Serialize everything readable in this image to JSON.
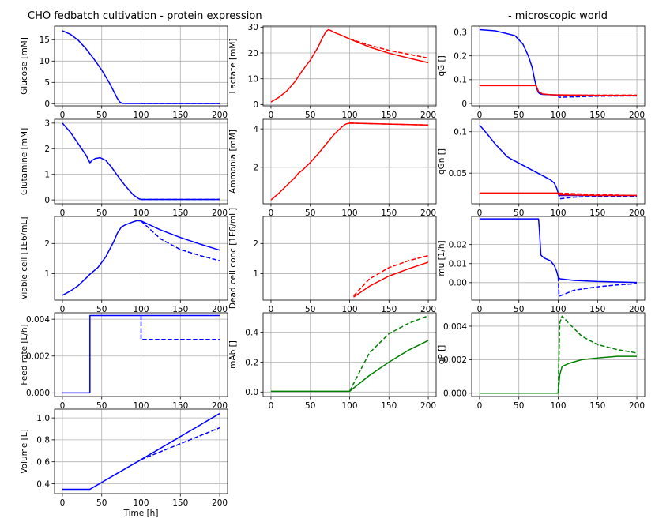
{
  "titles": {
    "left": "CHO fedbatch cultivation - protein expression",
    "right": "- microscopic world"
  },
  "colors": {
    "red": "#ff0000",
    "blue": "#0000ff",
    "green": "#008000",
    "grid": "#b0b0b0"
  },
  "chart_data": [
    {
      "id": "glucose",
      "type": "line",
      "xlabel": "",
      "ylabel": "Glucose [mM]",
      "xlim": [
        -10,
        210
      ],
      "ylim": [
        -0.5,
        18.2
      ],
      "xticks": [
        0,
        50,
        100,
        150,
        200
      ],
      "yticks": [
        0,
        5,
        10,
        15
      ],
      "series": [
        {
          "color": "blue",
          "dash": false,
          "x": [
            0,
            10,
            20,
            30,
            40,
            50,
            60,
            65,
            70,
            73,
            76,
            80,
            100,
            150,
            200
          ],
          "y": [
            17.1,
            16.3,
            14.9,
            12.9,
            10.5,
            7.9,
            4.8,
            3.0,
            1.2,
            0.4,
            0.1,
            0.05,
            0.05,
            0.05,
            0.05
          ]
        },
        {
          "color": "blue",
          "dash": true,
          "x": [
            100,
            150,
            200
          ],
          "y": [
            0.05,
            0.05,
            0.05
          ]
        }
      ]
    },
    {
      "id": "lactate",
      "type": "line",
      "xlabel": "",
      "ylabel": "Lactate [mM]",
      "xlim": [
        -10,
        210
      ],
      "ylim": [
        -0.5,
        30.4
      ],
      "xticks": [
        0,
        50,
        100,
        150,
        200
      ],
      "yticks": [
        0,
        10,
        20,
        30
      ],
      "series": [
        {
          "color": "red",
          "dash": false,
          "x": [
            0,
            10,
            20,
            30,
            40,
            50,
            60,
            65,
            70,
            73,
            76,
            80,
            90,
            100,
            125,
            150,
            175,
            200
          ],
          "y": [
            1,
            2.8,
            5.2,
            8.7,
            13.2,
            17.2,
            22.3,
            25.6,
            28.3,
            29.0,
            28.7,
            28.0,
            26.8,
            25.4,
            22.3,
            19.9,
            18.0,
            16.2
          ]
        },
        {
          "color": "red",
          "dash": true,
          "x": [
            100,
            125,
            150,
            175,
            200
          ],
          "y": [
            25.4,
            23.0,
            21.0,
            19.5,
            18.0
          ]
        }
      ]
    },
    {
      "id": "qG",
      "type": "line",
      "xlabel": "",
      "ylabel": "qG []",
      "xlim": [
        -10,
        210
      ],
      "ylim": [
        -0.01,
        0.325
      ],
      "xticks": [
        0,
        50,
        100,
        150,
        200
      ],
      "yticks": [
        0,
        0.1,
        0.2,
        0.3
      ],
      "series": [
        {
          "color": "blue",
          "dash": false,
          "x": [
            0,
            20,
            35,
            45,
            55,
            62,
            67,
            70,
            73,
            75,
            77,
            80,
            90,
            100,
            150,
            200
          ],
          "y": [
            0.31,
            0.305,
            0.293,
            0.285,
            0.25,
            0.2,
            0.15,
            0.1,
            0.06,
            0.045,
            0.04,
            0.038,
            0.037,
            0.035,
            0.034,
            0.034
          ]
        },
        {
          "color": "blue",
          "dash": true,
          "x": [
            100,
            101,
            150,
            200
          ],
          "y": [
            0.035,
            0.026,
            0.031,
            0.032
          ]
        },
        {
          "color": "red",
          "dash": false,
          "x": [
            0,
            72,
            75,
            80,
            90,
            100,
            150,
            200
          ],
          "y": [
            0.075,
            0.075,
            0.05,
            0.04,
            0.037,
            0.036,
            0.034,
            0.034
          ]
        },
        {
          "color": "red",
          "dash": true,
          "x": [
            100,
            150,
            200
          ],
          "y": [
            0.036,
            0.035,
            0.035
          ]
        }
      ]
    },
    {
      "id": "glutamine",
      "type": "line",
      "xlabel": "",
      "ylabel": "Glutamine [mM]",
      "xlim": [
        -10,
        210
      ],
      "ylim": [
        -0.15,
        3.15
      ],
      "xticks": [
        0,
        50,
        100,
        150,
        200
      ],
      "yticks": [
        0,
        1,
        2,
        3
      ],
      "series": [
        {
          "color": "blue",
          "dash": false,
          "x": [
            0,
            10,
            20,
            30,
            35,
            38,
            42,
            48,
            55,
            62,
            70,
            80,
            90,
            97,
            100,
            150,
            200
          ],
          "y": [
            3.0,
            2.65,
            2.2,
            1.75,
            1.45,
            1.55,
            1.62,
            1.65,
            1.55,
            1.3,
            0.95,
            0.55,
            0.2,
            0.05,
            0.02,
            0.02,
            0.02
          ]
        },
        {
          "color": "blue",
          "dash": true,
          "x": [
            100,
            150,
            200
          ],
          "y": [
            0.02,
            0.02,
            0.02
          ]
        }
      ]
    },
    {
      "id": "ammonia",
      "type": "line",
      "xlabel": "",
      "ylabel": "Ammonia [mM]",
      "xlim": [
        -10,
        210
      ],
      "ylim": [
        0.1,
        4.5
      ],
      "xticks": [
        0,
        50,
        100,
        150,
        200
      ],
      "yticks": [
        2,
        4
      ],
      "series": [
        {
          "color": "red",
          "dash": false,
          "x": [
            0,
            10,
            20,
            30,
            35,
            40,
            50,
            60,
            70,
            80,
            90,
            95,
            100,
            150,
            200
          ],
          "y": [
            0.3,
            0.65,
            1.05,
            1.45,
            1.7,
            1.85,
            2.25,
            2.7,
            3.2,
            3.7,
            4.1,
            4.25,
            4.3,
            4.25,
            4.2
          ]
        },
        {
          "color": "red",
          "dash": true,
          "x": [
            100,
            150,
            200
          ],
          "y": [
            4.3,
            4.25,
            4.2
          ]
        }
      ]
    },
    {
      "id": "qGn",
      "type": "line",
      "xlabel": "",
      "ylabel": "qGn []",
      "xlim": [
        -10,
        210
      ],
      "ylim": [
        0.013,
        0.115
      ],
      "xticks": [
        0,
        50,
        100,
        150,
        200
      ],
      "yticks": [
        0.05,
        0.1
      ],
      "series": [
        {
          "color": "blue",
          "dash": false,
          "x": [
            0,
            10,
            20,
            30,
            35,
            40,
            50,
            60,
            70,
            80,
            90,
            95,
            98,
            100,
            102,
            150,
            200
          ],
          "y": [
            0.108,
            0.097,
            0.085,
            0.075,
            0.07,
            0.067,
            0.062,
            0.057,
            0.052,
            0.047,
            0.042,
            0.038,
            0.032,
            0.026,
            0.023,
            0.023,
            0.023
          ]
        },
        {
          "color": "blue",
          "dash": true,
          "x": [
            100,
            102,
            120,
            150,
            200
          ],
          "y": [
            0.026,
            0.019,
            0.021,
            0.022,
            0.022
          ]
        },
        {
          "color": "red",
          "dash": false,
          "x": [
            0,
            100,
            101,
            150,
            200
          ],
          "y": [
            0.026,
            0.026,
            0.024,
            0.023,
            0.023
          ]
        },
        {
          "color": "red",
          "dash": true,
          "x": [
            100,
            150,
            200
          ],
          "y": [
            0.026,
            0.024,
            0.023
          ]
        }
      ]
    },
    {
      "id": "viable",
      "type": "line",
      "xlabel": "",
      "ylabel": "Viable cell [1E6/mL]",
      "xlim": [
        -10,
        210
      ],
      "ylim": [
        0.12,
        2.9
      ],
      "xticks": [
        0,
        50,
        100,
        150,
        200
      ],
      "yticks": [
        1,
        2
      ],
      "series": [
        {
          "color": "blue",
          "dash": false,
          "x": [
            0,
            10,
            20,
            30,
            35,
            45,
            55,
            65,
            70,
            75,
            80,
            90,
            95,
            100,
            125,
            150,
            175,
            200
          ],
          "y": [
            0.28,
            0.42,
            0.6,
            0.85,
            0.98,
            1.2,
            1.55,
            2.05,
            2.35,
            2.55,
            2.62,
            2.72,
            2.76,
            2.75,
            2.45,
            2.2,
            1.98,
            1.78
          ]
        },
        {
          "color": "blue",
          "dash": true,
          "x": [
            100,
            125,
            150,
            175,
            200
          ],
          "y": [
            2.75,
            2.15,
            1.8,
            1.6,
            1.43
          ]
        }
      ]
    },
    {
      "id": "dead",
      "type": "line",
      "xlabel": "",
      "ylabel": "Dead cell conc [1E6/mL]",
      "xlim": [
        -10,
        210
      ],
      "ylim": [
        0.12,
        2.9
      ],
      "xticks": [
        0,
        50,
        100,
        150,
        200
      ],
      "yticks": [
        1,
        2
      ],
      "series": [
        {
          "color": "red",
          "dash": false,
          "x": [
            105,
            125,
            150,
            175,
            200
          ],
          "y": [
            0.22,
            0.58,
            0.92,
            1.16,
            1.38
          ]
        },
        {
          "color": "red",
          "dash": true,
          "x": [
            105,
            125,
            150,
            175,
            200
          ],
          "y": [
            0.26,
            0.82,
            1.2,
            1.43,
            1.6
          ]
        }
      ]
    },
    {
      "id": "mu",
      "type": "line",
      "xlabel": "",
      "ylabel": "mu [1/h]",
      "xlim": [
        -10,
        210
      ],
      "ylim": [
        -0.0092,
        0.0348
      ],
      "xticks": [
        0,
        50,
        100,
        150,
        200
      ],
      "yticks": [
        0,
        0.01,
        0.02
      ],
      "labels_y": [
        "0.00",
        "0.01",
        "0.02"
      ],
      "series": [
        {
          "color": "blue",
          "dash": false,
          "x": [
            0,
            75,
            76,
            78,
            82,
            90,
            95,
            98,
            100,
            102,
            120,
            150,
            200
          ],
          "y": [
            0.0335,
            0.0335,
            0.028,
            0.0145,
            0.013,
            0.0115,
            0.009,
            0.006,
            0.003,
            0.002,
            0.0012,
            0.0006,
            0.0001
          ]
        },
        {
          "color": "blue",
          "dash": true,
          "x": [
            100,
            101,
            102,
            120,
            150,
            175,
            200
          ],
          "y": [
            0.003,
            -0.006,
            -0.007,
            -0.004,
            -0.0022,
            -0.0012,
            -0.0005
          ]
        }
      ]
    },
    {
      "id": "feed",
      "type": "line",
      "xlabel": "",
      "ylabel": "Feed rate [L/h]",
      "xlim": [
        -10,
        210
      ],
      "ylim": [
        -0.0002,
        0.00435
      ],
      "xticks": [
        0,
        50,
        100,
        150,
        200
      ],
      "yticks": [
        0,
        0.002,
        0.004
      ],
      "labels_y": [
        "0.000",
        "0.002",
        "0.004"
      ],
      "series": [
        {
          "color": "blue",
          "dash": false,
          "x": [
            0,
            35,
            35,
            100,
            200
          ],
          "y": [
            0,
            0,
            0.0042,
            0.0042,
            0.0042
          ]
        },
        {
          "color": "blue",
          "dash": true,
          "x": [
            100,
            100,
            200
          ],
          "y": [
            0.0042,
            0.0029,
            0.0029
          ]
        }
      ]
    },
    {
      "id": "mab",
      "type": "line",
      "xlabel": "",
      "ylabel": "mAb []",
      "xlim": [
        -10,
        210
      ],
      "ylim": [
        -0.03,
        0.53
      ],
      "xticks": [
        0,
        50,
        100,
        150,
        200
      ],
      "yticks": [
        0,
        0.2,
        0.4
      ],
      "labels_y": [
        "0.0",
        "0.2",
        "0.4"
      ],
      "series": [
        {
          "color": "green",
          "dash": false,
          "x": [
            0,
            100,
            125,
            150,
            175,
            200
          ],
          "y": [
            0.005,
            0.005,
            0.11,
            0.2,
            0.28,
            0.345
          ]
        },
        {
          "color": "green",
          "dash": true,
          "x": [
            100,
            125,
            150,
            175,
            200
          ],
          "y": [
            0.005,
            0.26,
            0.39,
            0.46,
            0.51
          ]
        }
      ]
    },
    {
      "id": "qP",
      "type": "line",
      "xlabel": "",
      "ylabel": "qP []",
      "xlim": [
        -10,
        210
      ],
      "ylim": [
        -0.0002,
        0.0048
      ],
      "xticks": [
        0,
        50,
        100,
        150,
        200
      ],
      "yticks": [
        0,
        0.002,
        0.004
      ],
      "labels_y": [
        "0.000",
        "0.002",
        "0.004"
      ],
      "series": [
        {
          "color": "green",
          "dash": false,
          "x": [
            0,
            100,
            102,
            105,
            115,
            130,
            150,
            175,
            200
          ],
          "y": [
            0,
            0,
            0.0011,
            0.0016,
            0.0018,
            0.002,
            0.0021,
            0.0022,
            0.0022
          ]
        },
        {
          "color": "green",
          "dash": true,
          "x": [
            100,
            102,
            105,
            115,
            130,
            150,
            175,
            200
          ],
          "y": [
            0,
            0.0042,
            0.0046,
            0.0041,
            0.0034,
            0.0029,
            0.0026,
            0.0024
          ]
        }
      ]
    },
    {
      "id": "volume",
      "type": "line",
      "xlabel": "Time [h]",
      "ylabel": "Volume [L]",
      "xlim": [
        -10,
        210
      ],
      "ylim": [
        0.31,
        1.08
      ],
      "xticks": [
        0,
        50,
        100,
        150,
        200
      ],
      "yticks": [
        0.4,
        0.6,
        0.8,
        1.0
      ],
      "labels_y": [
        "0.4",
        "0.6",
        "0.8",
        "1.0"
      ],
      "series": [
        {
          "color": "blue",
          "dash": false,
          "x": [
            0,
            35,
            100,
            200
          ],
          "y": [
            0.35,
            0.35,
            0.62,
            1.04
          ]
        },
        {
          "color": "blue",
          "dash": true,
          "x": [
            100,
            200
          ],
          "y": [
            0.62,
            0.91
          ]
        }
      ]
    }
  ]
}
